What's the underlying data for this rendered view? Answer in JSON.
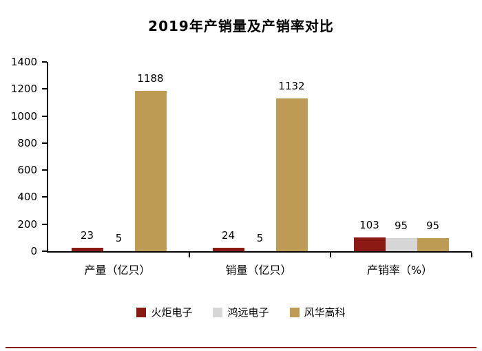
{
  "title": "2019年产销量及产销率对比",
  "chart_data": {
    "type": "bar",
    "title": "2019年产销量及产销率对比",
    "categories": [
      "产量（亿只）",
      "销量（亿只）",
      "产销率（%）"
    ],
    "series": [
      {
        "name": "火炬电子",
        "color": "#8B1A14",
        "values": [
          23,
          24,
          103
        ]
      },
      {
        "name": "鸿远电子",
        "color": "#D6D6D6",
        "values": [
          5,
          5,
          95
        ]
      },
      {
        "name": "风华高科",
        "color": "#BE9B54",
        "values": [
          1188,
          1132,
          95
        ]
      }
    ],
    "ylim": [
      0,
      1400
    ],
    "yticks": [
      0,
      200,
      400,
      600,
      800,
      1000,
      1200,
      1400
    ],
    "grid": false,
    "legend_position": "bottom",
    "bar_value_labels": true,
    "xlabel": "",
    "ylabel": ""
  },
  "footer": {
    "rule_color": "#8B1A14"
  }
}
